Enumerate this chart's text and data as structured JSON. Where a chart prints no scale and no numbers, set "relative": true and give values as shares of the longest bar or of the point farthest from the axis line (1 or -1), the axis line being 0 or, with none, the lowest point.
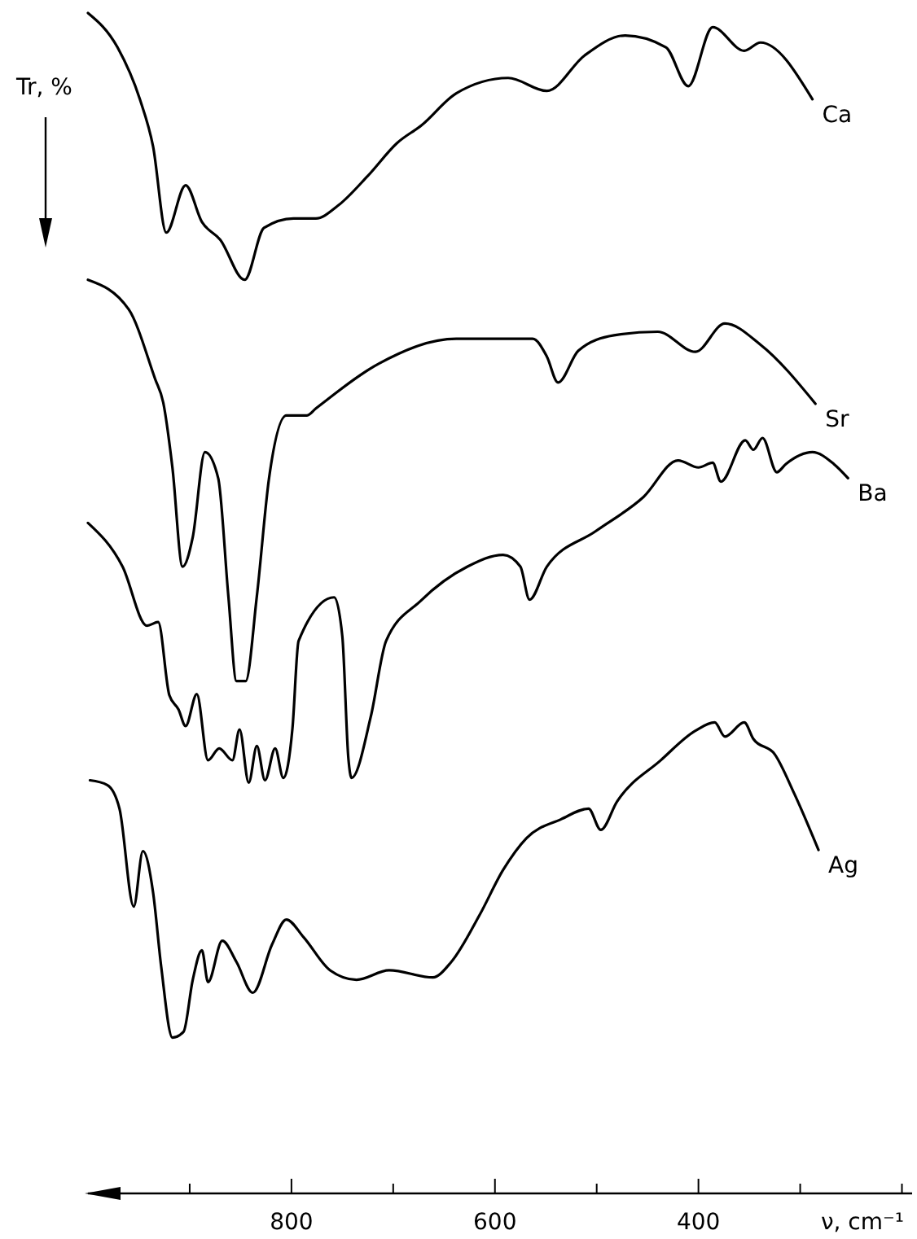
{
  "chart_data": {
    "type": "line",
    "xlabel": "ν, cm⁻¹",
    "ylabel": "Tr, %",
    "relative": true,
    "xlim": [
      1000,
      190
    ],
    "xticks": [
      {
        "value": 900,
        "label": null
      },
      800,
      {
        "value": 700,
        "label": null
      },
      600,
      {
        "value": 500,
        "label": null
      },
      400,
      {
        "value": 300,
        "label": null
      },
      {
        "value": 200,
        "label": null
      }
    ],
    "grid": false,
    "series": [
      {
        "name": "Ca",
        "color": "#000000",
        "x": [
          1000,
          971,
          949,
          936,
          923,
          904,
          888,
          870,
          846,
          827,
          798,
          776,
          754,
          725,
          696,
          672,
          638,
          587,
          549,
          512,
          472,
          432,
          410,
          386,
          355,
          339,
          288
        ],
        "values": [
          1.0,
          0.971,
          0.927,
          0.887,
          0.814,
          0.854,
          0.823,
          0.808,
          0.774,
          0.818,
          0.826,
          0.826,
          0.837,
          0.862,
          0.89,
          0.905,
          0.932,
          0.945,
          0.934,
          0.964,
          0.981,
          0.971,
          0.938,
          0.988,
          0.968,
          0.975,
          0.927
        ]
      },
      {
        "name": "Sr",
        "color": "#000000",
        "x": [
          1000,
          960,
          934,
          926,
          917,
          907,
          897,
          885,
          872,
          862,
          854,
          845,
          834,
          822,
          805,
          785,
          776,
          714,
          638,
          563,
          549,
          538,
          518,
          483,
          440,
          403,
          374,
          339,
          285
        ],
        "values": [
          0.774,
          0.749,
          0.69,
          0.67,
          0.615,
          0.531,
          0.556,
          0.628,
          0.606,
          0.506,
          0.434,
          0.434,
          0.506,
          0.606,
          0.659,
          0.659,
          0.665,
          0.703,
          0.724,
          0.724,
          0.709,
          0.687,
          0.714,
          0.727,
          0.73,
          0.713,
          0.737,
          0.719,
          0.669
        ]
      },
      {
        "name": "Ba",
        "color": "#000000",
        "x": [
          1000,
          966,
          942,
          931,
          920,
          911,
          904,
          893,
          882,
          871,
          858,
          851,
          842,
          834,
          826,
          816,
          808,
          799,
          793,
          758,
          750,
          744,
          741,
          722,
          707,
          673,
          627,
          592,
          575,
          566,
          549,
          501,
          454,
          420,
          400,
          386,
          378,
          354,
          346,
          337,
          323,
          314,
          288,
          267,
          253
        ],
        "values": [
          0.568,
          0.531,
          0.481,
          0.484,
          0.422,
          0.41,
          0.396,
          0.423,
          0.367,
          0.377,
          0.367,
          0.393,
          0.348,
          0.379,
          0.35,
          0.377,
          0.352,
          0.394,
          0.468,
          0.505,
          0.472,
          0.368,
          0.352,
          0.404,
          0.468,
          0.502,
          0.531,
          0.541,
          0.531,
          0.503,
          0.531,
          0.561,
          0.59,
          0.621,
          0.615,
          0.619,
          0.603,
          0.638,
          0.63,
          0.64,
          0.611,
          0.618,
          0.628,
          0.618,
          0.606
        ]
      },
      {
        "name": "Ag",
        "color": "#000000",
        "x": [
          998,
          981,
          969,
          955,
          946,
          936,
          928,
          917,
          906,
          897,
          888,
          882,
          868,
          854,
          838,
          819,
          805,
          788,
          762,
          736,
          704,
          661,
          643,
          615,
          592,
          569,
          535,
          508,
          496,
          480,
          437,
          403,
          384,
          374,
          355,
          346,
          325,
          306,
          282
        ],
        "values": [
          0.35,
          0.346,
          0.326,
          0.243,
          0.29,
          0.255,
          0.192,
          0.132,
          0.137,
          0.181,
          0.206,
          0.179,
          0.214,
          0.196,
          0.17,
          0.211,
          0.232,
          0.217,
          0.189,
          0.181,
          0.189,
          0.183,
          0.196,
          0.236,
          0.274,
          0.301,
          0.317,
          0.326,
          0.308,
          0.332,
          0.367,
          0.392,
          0.399,
          0.387,
          0.399,
          0.385,
          0.372,
          0.339,
          0.291
        ]
      }
    ]
  }
}
